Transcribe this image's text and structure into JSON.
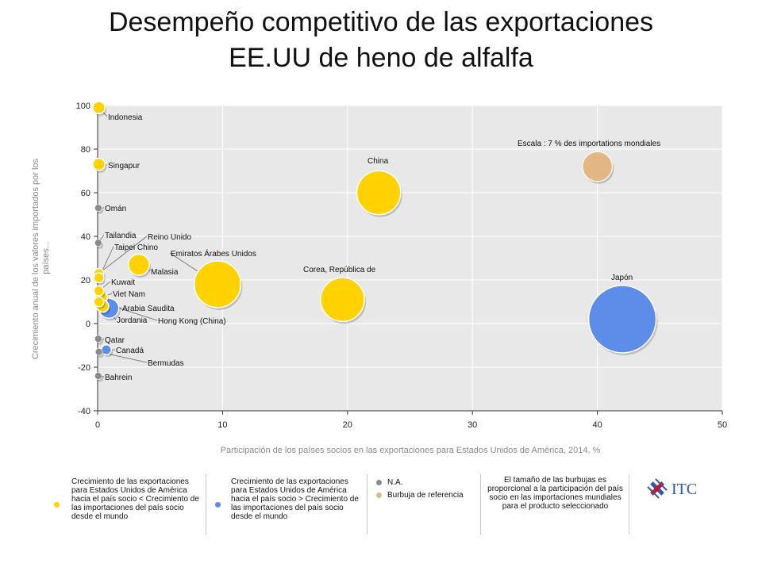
{
  "slide": {
    "title_line1": "Desempeño competitivo de las exportaciones",
    "title_line2": "EE.UU de heno de alfalfa"
  },
  "colors": {
    "yellow": "#FFD200",
    "blue": "#5C8DE8",
    "gray": "#8A8A8A",
    "tan": "#E2B784",
    "plot_bg": "#E8E8E8",
    "grid": "#FFFFFF"
  },
  "chart_data": {
    "type": "scatter",
    "subtype": "bubble",
    "xlabel": "Participación de los países socios en las exportaciones para Estados Unidos de América, 2014, %",
    "ylabel": "Crecimiento anual de los valores importados por los países...",
    "xlim": [
      0,
      50
    ],
    "ylim": [
      -40,
      100
    ],
    "xticks": [
      0,
      10,
      20,
      30,
      40,
      50
    ],
    "yticks": [
      -40,
      -20,
      0,
      20,
      40,
      60,
      80,
      100
    ],
    "grid": true,
    "scale_note": "Escala : 7 % des importations mondiales",
    "points": [
      {
        "label": "Indonesia",
        "x": 0.1,
        "y": 99,
        "size": 0.3,
        "group": "yellow"
      },
      {
        "label": "Singapur",
        "x": 0.1,
        "y": 73,
        "size": 0.3,
        "group": "yellow"
      },
      {
        "label": "Omán",
        "x": 0.05,
        "y": 53,
        "size": 0.1,
        "group": "gray"
      },
      {
        "label": "Tailandia",
        "x": 0.05,
        "y": 37,
        "size": 0.1,
        "group": "gray"
      },
      {
        "label": "Reino Unido",
        "x": 0.1,
        "y": 23,
        "size": 0.2,
        "group": "yellow"
      },
      {
        "label": "Taipei Chino",
        "x": 0.1,
        "y": 21,
        "size": 0.2,
        "group": "yellow"
      },
      {
        "label": "Emiratos Árabes Unidos",
        "x": 9.6,
        "y": 18,
        "size": 4.4,
        "group": "yellow"
      },
      {
        "label": "Malasia",
        "x": 3.3,
        "y": 27,
        "size": 0.9,
        "group": "yellow"
      },
      {
        "label": "Kuwait",
        "x": 0.1,
        "y": 15,
        "size": 0.2,
        "group": "yellow"
      },
      {
        "label": "Viet Nam",
        "x": 0.3,
        "y": 12,
        "size": 0.3,
        "group": "yellow"
      },
      {
        "label": "Arabia Saudita",
        "x": 0.9,
        "y": 7,
        "size": 0.8,
        "group": "blue"
      },
      {
        "label": "Jordania",
        "x": 0.4,
        "y": 8,
        "size": 0.3,
        "group": "yellow"
      },
      {
        "label": "Hong Kong (China)",
        "x": 0.1,
        "y": 10,
        "size": 0.2,
        "group": "yellow"
      },
      {
        "label": "Qatar",
        "x": 0.05,
        "y": -7,
        "size": 0.1,
        "group": "gray"
      },
      {
        "label": "Canadá",
        "x": 0.7,
        "y": -12,
        "size": 0.2,
        "group": "blue"
      },
      {
        "label": "Bermudas",
        "x": 0.1,
        "y": -13,
        "size": 0.1,
        "group": "gray"
      },
      {
        "label": "Bahrein",
        "x": 0.05,
        "y": -24,
        "size": 0.1,
        "group": "gray"
      },
      {
        "label": "China",
        "x": 22.5,
        "y": 60,
        "size": 3.9,
        "group": "yellow"
      },
      {
        "label": "Corea, República de",
        "x": 19.6,
        "y": 11,
        "size": 3.9,
        "group": "yellow"
      },
      {
        "label": "Japón",
        "x": 42,
        "y": 2,
        "size": 9.2,
        "group": "blue"
      }
    ],
    "reference_bubble": {
      "x": 40,
      "y": 72,
      "size": 1.8,
      "group": "tan"
    }
  },
  "legend": {
    "item1": "Crecimiento de las exportaciones para Estados Unidos de América hacia el país socio < Crecimiento de las importaciones del país socio desde el mundo",
    "item2": "Crecimiento de las exportaciones para Estados Unidos de América hacia el país socio > Crecimiento de las importaciones del país socio desde el mundo",
    "na": "N.A.",
    "ref": "Burbuja de referencia",
    "size_note": "El tamaño de las burbujas es proporcional a la participación del país socio en las importaciones mundiales para el producto seleccionado",
    "logo_text": "ITC"
  }
}
